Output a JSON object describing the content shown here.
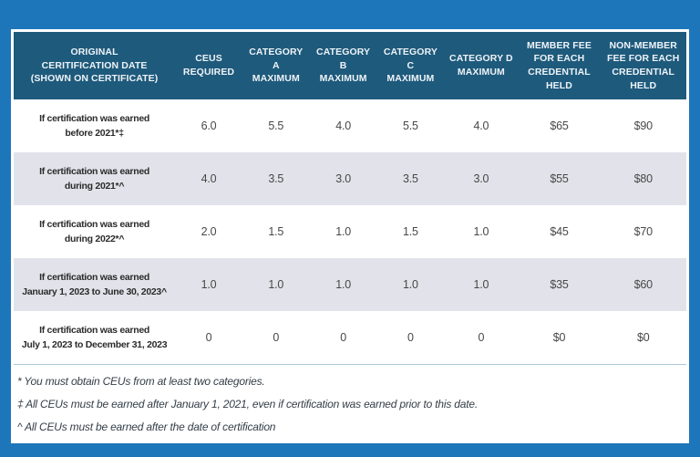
{
  "colors": {
    "outer_bg": "#1e76ba",
    "header_bg": "#1e5a7c",
    "header_text": "#eef3f7",
    "row_alt_bg": "#e2e3ea",
    "row_bg": "#ffffff",
    "label_text": "#2b2b2b",
    "value_text": "#474747",
    "separator": "#aac7da",
    "footnote_text": "#333e47"
  },
  "table": {
    "columns": [
      "ORIGINAL\nCERITIFICATION DATE\n(SHOWN ON CERTIFICATE)",
      "CEUS\nREQUIRED",
      "CATEGORY A\nMAXIMUM",
      "CATEGORY B\nMAXIMUM",
      "CATEGORY C\nMAXIMUM",
      "CATEGORY D\nMAXIMUM",
      "MEMBER FEE\nFOR EACH\nCREDENTIAL\nHELD",
      "NON-MEMBER\nFEE FOR EACH\nCREDENTIAL\nHELD"
    ],
    "rows": [
      {
        "label": "If certification was earned\nbefore 2021*‡",
        "values": [
          "6.0",
          "5.5",
          "4.0",
          "5.5",
          "4.0",
          "$65",
          "$90"
        ]
      },
      {
        "label": "If certification was earned\nduring 2021*^",
        "values": [
          "4.0",
          "3.5",
          "3.0",
          "3.5",
          "3.0",
          "$55",
          "$80"
        ]
      },
      {
        "label": "If certification was earned\nduring 2022*^",
        "values": [
          "2.0",
          "1.5",
          "1.0",
          "1.5",
          "1.0",
          "$45",
          "$70"
        ]
      },
      {
        "label": "If certification was earned\nJanuary 1, 2023 to June 30, 2023^",
        "values": [
          "1.0",
          "1.0",
          "1.0",
          "1.0",
          "1.0",
          "$35",
          "$60"
        ]
      },
      {
        "label": "If certification was earned\nJuly 1, 2023 to December 31, 2023",
        "values": [
          "0",
          "0",
          "0",
          "0",
          "0",
          "$0",
          "$0"
        ]
      }
    ]
  },
  "footnotes": [
    "* You must obtain CEUs from at least two categories.",
    "‡ All CEUs must be earned after January 1, 2021, even if certification was earned prior to this date.",
    "^ All CEUs must be earned after the date of certification"
  ]
}
